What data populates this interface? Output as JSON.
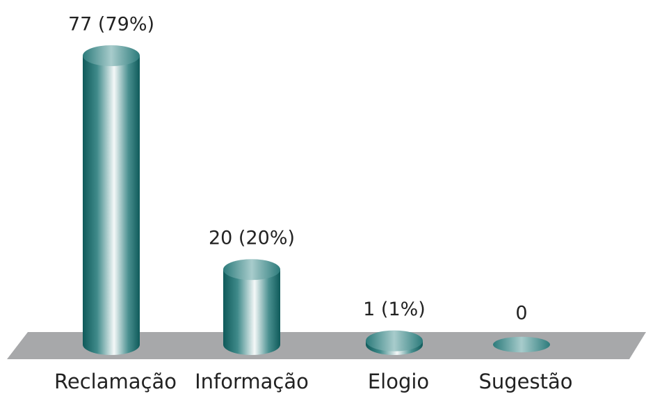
{
  "chart_data": {
    "type": "bar",
    "categories": [
      "Reclamação",
      "Informação",
      "Elogio",
      "Sugestão"
    ],
    "values": [
      77,
      20,
      1,
      0
    ],
    "value_labels": [
      "77 (79%)",
      "20 (20%)",
      "1 (1%)",
      "0"
    ],
    "color": "#1d6b6b"
  }
}
